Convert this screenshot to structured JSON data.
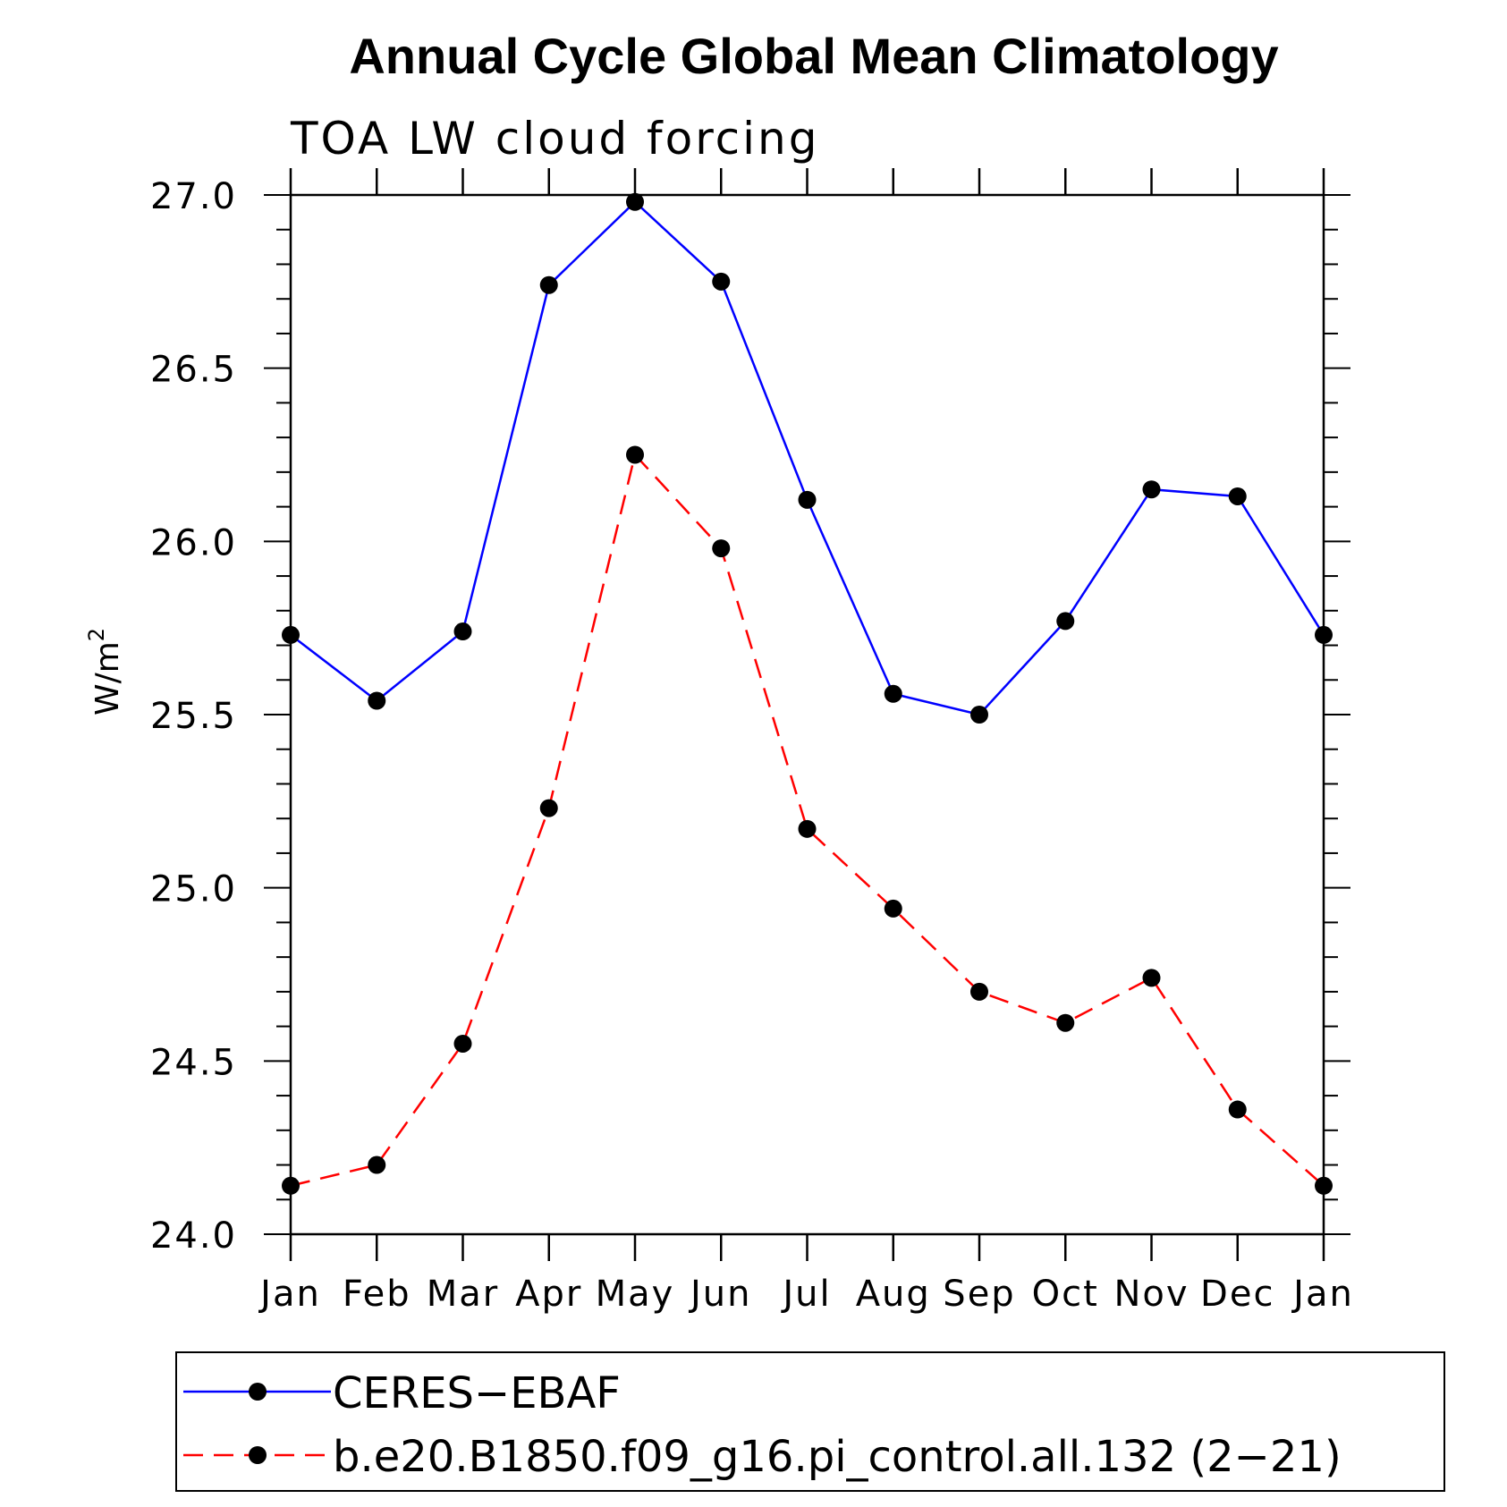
{
  "chart_data": {
    "type": "line",
    "title": "Annual Cycle Global Mean Climatology",
    "subtitle": "TOA LW cloud forcing",
    "xlabel": "",
    "ylabel": "W/m",
    "ylabel_superscript": "2",
    "categories": [
      "Jan",
      "Feb",
      "Mar",
      "Apr",
      "May",
      "Jun",
      "Jul",
      "Aug",
      "Sep",
      "Oct",
      "Nov",
      "Dec",
      "Jan"
    ],
    "ylim": [
      24.0,
      27.0
    ],
    "y_ticks": [
      "24.0",
      "24.5",
      "25.0",
      "25.5",
      "26.0",
      "26.5",
      "27.0"
    ],
    "grid": false,
    "legend_position": "bottom",
    "series": [
      {
        "name": "CERES−EBAF",
        "color": "#0000ff",
        "line_style": "solid",
        "marker": "circle",
        "values": [
          25.73,
          25.54,
          25.74,
          26.74,
          26.98,
          26.75,
          26.12,
          25.56,
          25.5,
          25.77,
          26.15,
          26.13,
          25.73
        ]
      },
      {
        "name": "b.e20.B1850.f09_g16.pi_control.all.132 (2−21)",
        "color": "#ff0000",
        "line_style": "dashed",
        "marker": "circle",
        "values": [
          24.14,
          24.2,
          24.55,
          25.23,
          26.25,
          25.98,
          25.17,
          24.94,
          24.7,
          24.61,
          24.74,
          24.36,
          24.14
        ]
      }
    ]
  }
}
